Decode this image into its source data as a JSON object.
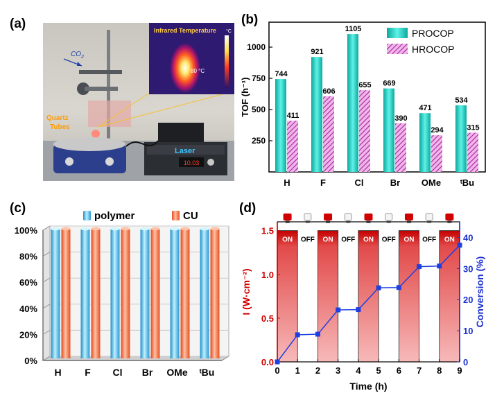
{
  "panel_labels": {
    "a": "(a)",
    "b": "(b)",
    "c": "(c)",
    "d": "(d)"
  },
  "photo": {
    "co2_label": "CO",
    "co2_subscript": "2",
    "ir_title": "Infrared Temperature",
    "ir_unit": "°C",
    "ir_reading": "80 °C",
    "quartz_label_1": "Quartz",
    "quartz_label_2": "Tubes",
    "laser_label": "Laser",
    "laser_display": "10.03"
  },
  "chart_data": [
    {
      "id": "b",
      "type": "bar",
      "categories": [
        "H",
        "F",
        "Cl",
        "Br",
        "OMe",
        "ᵗBu"
      ],
      "ylabel": "TOF (h⁻¹)",
      "ylim": [
        0,
        1200
      ],
      "yticks": [
        250,
        500,
        750,
        1000
      ],
      "legend_position": "top-right",
      "series": [
        {
          "name": "PROCOP",
          "values": [
            744,
            921,
            1105,
            669,
            471,
            534
          ],
          "color": "#1ec4b8"
        },
        {
          "name": "HROCOP",
          "values": [
            411,
            606,
            655,
            390,
            294,
            315
          ],
          "color": "#d154c8"
        }
      ]
    },
    {
      "id": "c",
      "type": "bar",
      "categories": [
        "H",
        "F",
        "Cl",
        "Br",
        "OMe",
        "ᵗBu"
      ],
      "ylim": [
        0,
        100
      ],
      "yticks": [
        "0%",
        "20%",
        "40%",
        "60%",
        "80%",
        "100%"
      ],
      "legend_position": "top",
      "series": [
        {
          "name": "polymer",
          "values": [
            100,
            100,
            100,
            100,
            100,
            100
          ],
          "color": "#5cc8e8"
        },
        {
          "name": "CU",
          "values": [
            100,
            100,
            100,
            100,
            100,
            100
          ],
          "color": "#f06a3c"
        }
      ]
    },
    {
      "id": "d",
      "type": "line",
      "xlabel": "Time (h)",
      "ylabel_left": "I (W·cm⁻²)",
      "ylabel_right": "Conversion (%)",
      "xlim": [
        0,
        9
      ],
      "xticks": [
        0,
        1,
        2,
        3,
        4,
        5,
        6,
        7,
        8,
        9
      ],
      "ylim_left": [
        0,
        1.6
      ],
      "yticks_left": [
        "0.0",
        "0.5",
        "1.0",
        "1.5"
      ],
      "ylim_right": [
        0,
        45
      ],
      "yticks_right": [
        0,
        10,
        20,
        30,
        40
      ],
      "on_off_labels": [
        "ON",
        "OFF",
        "ON",
        "OFF",
        "ON",
        "OFF",
        "ON",
        "OFF",
        "ON"
      ],
      "light_intensity": 1.5,
      "conversion_series": {
        "x": [
          0,
          1,
          2,
          3,
          4,
          5,
          6,
          7,
          8,
          9
        ],
        "y": [
          0,
          8.7,
          8.9,
          16.7,
          16.8,
          23.8,
          23.9,
          30.6,
          30.8,
          37.5
        ],
        "color": "#1f3fe0"
      },
      "left_color": "#d20000",
      "right_color": "#1a2fd0"
    }
  ]
}
